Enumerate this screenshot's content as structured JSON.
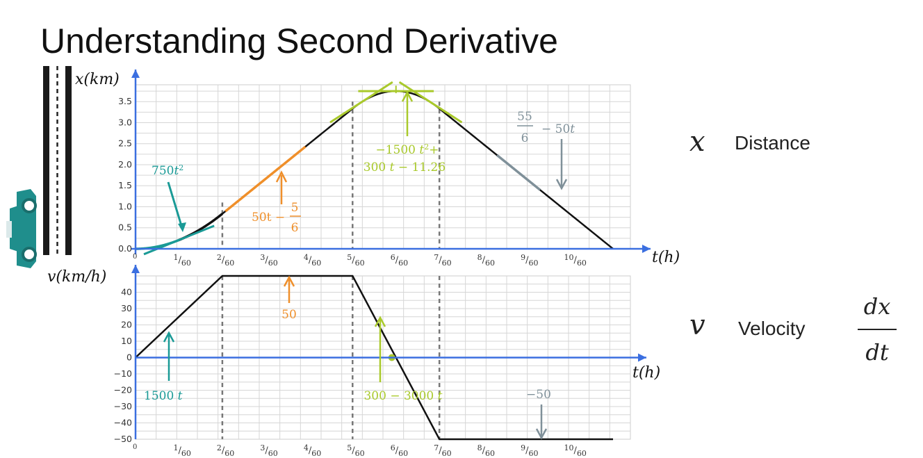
{
  "title": "Understanding Second Derivative",
  "legend": {
    "distance_symbol": "x",
    "distance_label": "Distance",
    "velocity_symbol": "v",
    "velocity_label": "Velocity",
    "derivative_num": "dx",
    "derivative_den": "dt"
  },
  "colors": {
    "axis": "#3b6fe0",
    "curve": "#111111",
    "teal": "#1a9a96",
    "orange": "#ef8f2a",
    "lime": "#a9c92b",
    "slate": "#7f9099",
    "grid": "#d6d6d6",
    "car": "#1f8e8c"
  },
  "chart_data": [
    {
      "type": "line",
      "name": "distance",
      "ylabel": "x(km)",
      "xlabel": "t(h)",
      "xlim": [
        0,
        0.19
      ],
      "ylim": [
        0,
        3.9
      ],
      "x_ticks": [
        {
          "num": "1",
          "den": "60",
          "v": 0.0166667
        },
        {
          "num": "2",
          "den": "60",
          "v": 0.0333333
        },
        {
          "num": "3",
          "den": "60",
          "v": 0.05
        },
        {
          "num": "4",
          "den": "60",
          "v": 0.0666667
        },
        {
          "num": "5",
          "den": "60",
          "v": 0.0833333
        },
        {
          "num": "6",
          "den": "60",
          "v": 0.1
        },
        {
          "num": "7",
          "den": "60",
          "v": 0.1166667
        },
        {
          "num": "8",
          "den": "60",
          "v": 0.1333333
        },
        {
          "num": "9",
          "den": "60",
          "v": 0.15
        },
        {
          "num": "10",
          "den": "60",
          "v": 0.1666667
        }
      ],
      "origin_label": "0",
      "y_ticks": [
        "0.0",
        "0.5",
        "1.0",
        "1.5",
        "2.0",
        "2.5",
        "3.0",
        "3.5"
      ],
      "y_tick_values": [
        0,
        0.5,
        1.0,
        1.5,
        2.0,
        2.5,
        3.0,
        3.5
      ],
      "dashed_x": [
        0.0333333,
        0.0833333,
        0.1166667
      ],
      "segments": [
        {
          "formula": "750t^2",
          "from": 0,
          "to": 0.0333333
        },
        {
          "formula": "50t - 5/6",
          "from": 0.0333333,
          "to": 0.0833333
        },
        {
          "formula": "-1500t^2 + 300t - 11.26",
          "from": 0.0833333,
          "to": 0.1166667
        },
        {
          "formula": "55/6 - 50t",
          "from": 0.1166667,
          "to": 0.1833333
        }
      ],
      "annotations": {
        "a1": "750",
        "a1_sup": "2",
        "a2_left": "50t −",
        "a2_num": "5",
        "a2_den": "6",
        "a3_line1": "−1500",
        "a3_sup": "2",
        "a3_line1_tail": "+",
        "a3_line2": "300",
        "a3_line2_tail": "− 11.26",
        "a4_num": "55",
        "a4_den": "6",
        "a4_tail": "− 50"
      }
    },
    {
      "type": "line",
      "name": "velocity",
      "ylabel": "v(km/h)",
      "xlabel": "t(h)",
      "xlim": [
        0,
        0.19
      ],
      "ylim": [
        -50,
        50
      ],
      "y_ticks": [
        "40",
        "30",
        "20",
        "10",
        "0",
        "−10",
        "−20",
        "−30",
        "−40",
        "−50"
      ],
      "y_tick_values": [
        40,
        30,
        20,
        10,
        0,
        -10,
        -20,
        -30,
        -40,
        -50
      ],
      "x": [
        0,
        0.0333333,
        0.0833333,
        0.1166667,
        0.1833333
      ],
      "y": [
        0,
        50,
        50,
        -50,
        -50
      ],
      "zero_crossing": [
        0.1,
        0
      ],
      "annotations": {
        "b1": "1500",
        "b2": "50",
        "b3": "300 − 3000",
        "b4": "−50"
      }
    }
  ]
}
